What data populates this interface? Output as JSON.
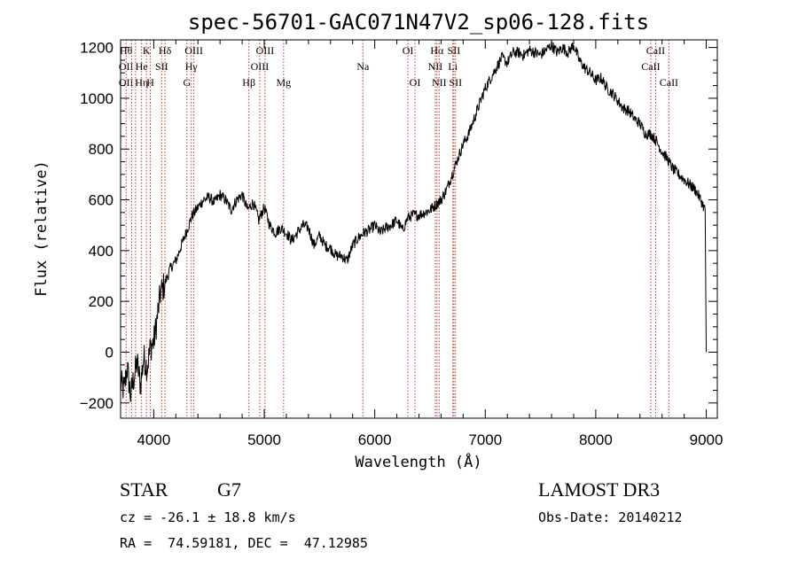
{
  "chart_data": {
    "type": "line",
    "title": "spec-56701-GAC071N47V2_sp06-128.fits",
    "xlabel": "Wavelength (Å)",
    "ylabel": "Flux (relative)",
    "xlim": [
      3700,
      9100
    ],
    "ylim": [
      -260,
      1230
    ],
    "xticks": [
      4000,
      5000,
      6000,
      7000,
      8000,
      9000
    ],
    "yticks": [
      -200,
      0,
      200,
      400,
      600,
      800,
      1000,
      1200
    ],
    "series": [
      {
        "name": "flux",
        "x": [
          3700,
          3730,
          3760,
          3790,
          3820,
          3850,
          3880,
          3910,
          3940,
          3970,
          4000,
          4030,
          4060,
          4100,
          4150,
          4200,
          4250,
          4300,
          4350,
          4400,
          4450,
          4500,
          4550,
          4600,
          4650,
          4700,
          4750,
          4800,
          4850,
          4900,
          4950,
          5000,
          5050,
          5100,
          5150,
          5200,
          5250,
          5300,
          5350,
          5400,
          5450,
          5500,
          5550,
          5600,
          5650,
          5700,
          5750,
          5800,
          5850,
          5900,
          5950,
          6000,
          6050,
          6100,
          6150,
          6200,
          6250,
          6300,
          6350,
          6400,
          6450,
          6500,
          6550,
          6600,
          6650,
          6700,
          6750,
          6800,
          6850,
          6900,
          6950,
          7000,
          7050,
          7100,
          7150,
          7200,
          7250,
          7300,
          7350,
          7400,
          7450,
          7500,
          7550,
          7600,
          7650,
          7700,
          7750,
          7800,
          7850,
          7900,
          7950,
          8000,
          8050,
          8100,
          8150,
          8200,
          8250,
          8300,
          8350,
          8400,
          8450,
          8500,
          8550,
          8600,
          8650,
          8700,
          8750,
          8800,
          8850,
          8900,
          8950,
          8990,
          9000
        ],
        "values": [
          -120,
          -150,
          -60,
          -170,
          -100,
          -40,
          -130,
          -20,
          -60,
          20,
          40,
          130,
          230,
          270,
          330,
          360,
          420,
          480,
          540,
          570,
          600,
          610,
          590,
          620,
          600,
          560,
          600,
          620,
          560,
          590,
          520,
          570,
          500,
          470,
          490,
          470,
          440,
          470,
          500,
          490,
          420,
          460,
          420,
          410,
          380,
          380,
          360,
          420,
          450,
          470,
          480,
          500,
          470,
          490,
          500,
          520,
          480,
          530,
          540,
          540,
          550,
          560,
          580,
          600,
          640,
          700,
          760,
          820,
          860,
          920,
          980,
          1040,
          1080,
          1120,
          1160,
          1140,
          1180,
          1180,
          1170,
          1190,
          1180,
          1170,
          1190,
          1210,
          1180,
          1200,
          1180,
          1210,
          1150,
          1120,
          1100,
          1070,
          1080,
          1040,
          1020,
          990,
          960,
          950,
          920,
          900,
          860,
          860,
          830,
          790,
          760,
          720,
          700,
          680,
          660,
          640,
          600,
          560,
          0
        ]
      }
    ],
    "lines": [
      {
        "x": 3750,
        "labels": [
          "Hθ",
          "OII",
          "OII"
        ]
      },
      {
        "x": 3800,
        "labels": []
      },
      {
        "x": 3836,
        "labels": [
          "",
          "",
          ""
        ]
      },
      {
        "x": 3890,
        "labels": [
          "",
          "He",
          "Hη"
        ]
      },
      {
        "x": 3934,
        "labels": [
          "K",
          "",
          ""
        ]
      },
      {
        "x": 3969,
        "labels": [
          "",
          "",
          "H"
        ]
      },
      {
        "x": 4072,
        "labels": [
          "",
          "SII",
          ""
        ]
      },
      {
        "x": 4102,
        "labels": [
          "Hδ",
          "",
          ""
        ]
      },
      {
        "x": 4300,
        "labels": [
          "",
          "",
          "G"
        ]
      },
      {
        "x": 4340,
        "labels": [
          "",
          "Hγ",
          ""
        ]
      },
      {
        "x": 4363,
        "labels": [
          "OIII",
          "",
          ""
        ]
      },
      {
        "x": 4861,
        "labels": [
          "",
          "",
          "Hβ"
        ]
      },
      {
        "x": 4959,
        "labels": [
          "",
          "OIII",
          ""
        ]
      },
      {
        "x": 5007,
        "labels": [
          "OIII",
          "",
          ""
        ]
      },
      {
        "x": 5175,
        "labels": [
          "",
          "",
          "Mg"
        ]
      },
      {
        "x": 5893,
        "labels": [
          "",
          "Na",
          ""
        ]
      },
      {
        "x": 6300,
        "labels": [
          "OI",
          "",
          ""
        ]
      },
      {
        "x": 6364,
        "labels": [
          "",
          "",
          "OI"
        ]
      },
      {
        "x": 6548,
        "labels": [
          "",
          "NII",
          ""
        ]
      },
      {
        "x": 6563,
        "labels": [
          "Hα",
          "",
          ""
        ]
      },
      {
        "x": 6583,
        "labels": [
          "",
          "",
          "NII"
        ]
      },
      {
        "x": 6707,
        "labels": [
          "",
          "Li",
          ""
        ]
      },
      {
        "x": 6716,
        "labels": [
          "SII",
          "",
          ""
        ]
      },
      {
        "x": 6731,
        "labels": [
          "",
          "",
          "SII"
        ]
      },
      {
        "x": 8498,
        "labels": [
          "",
          "CaII",
          ""
        ]
      },
      {
        "x": 8542,
        "labels": [
          "CaII",
          "",
          ""
        ]
      },
      {
        "x": 8662,
        "labels": [
          "",
          "",
          "CaII"
        ]
      }
    ],
    "grid": false
  },
  "info": {
    "object_type": "STAR",
    "subclass": "G7",
    "survey": "LAMOST DR3",
    "cz": "cz = -26.1 ± 18.8 km/s",
    "obs_date": "Obs-Date: 20140212",
    "coords": "RA =  74.59181, DEC =  47.12985"
  },
  "colors": {
    "line_marker": "#c0392b",
    "spectrum": "#000000"
  }
}
